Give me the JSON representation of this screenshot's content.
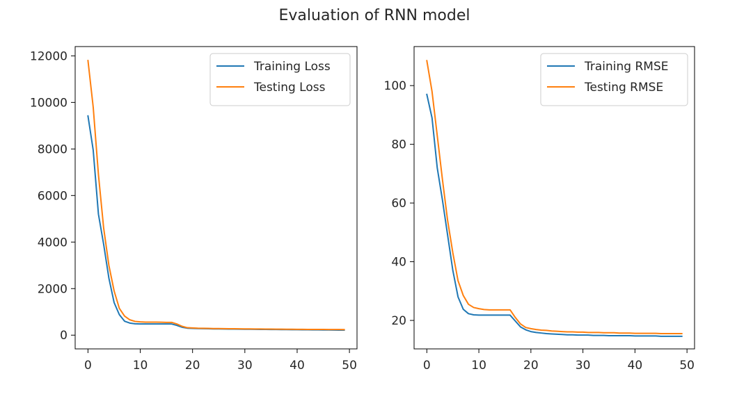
{
  "figure": {
    "suptitle": "Evaluation of RNN model"
  },
  "colors": {
    "training": "#1f77b4",
    "testing": "#ff7f0e",
    "axes": "#000000",
    "text": "#262626"
  },
  "chart_data": [
    {
      "type": "line",
      "title": "",
      "xlabel": "",
      "ylabel": "",
      "xlim": [
        -2.45,
        51.45
      ],
      "ylim": [
        -590,
        12400
      ],
      "xticks": [
        0,
        10,
        20,
        30,
        40,
        50
      ],
      "yticks": [
        0,
        2000,
        4000,
        6000,
        8000,
        10000,
        12000
      ],
      "legend": "top-right",
      "grid": false,
      "x": [
        0,
        1,
        2,
        3,
        4,
        5,
        6,
        7,
        8,
        9,
        10,
        11,
        12,
        13,
        14,
        15,
        16,
        17,
        18,
        19,
        20,
        21,
        22,
        23,
        24,
        25,
        26,
        27,
        28,
        29,
        30,
        31,
        32,
        33,
        34,
        35,
        36,
        37,
        38,
        39,
        40,
        41,
        42,
        43,
        44,
        45,
        46,
        47,
        48,
        49
      ],
      "series": [
        {
          "name": "Training Loss",
          "color_key": "training",
          "values": [
            9420,
            7950,
            5200,
            3900,
            2450,
            1400,
            880,
            600,
            520,
            490,
            480,
            480,
            480,
            480,
            480,
            480,
            480,
            420,
            340,
            300,
            290,
            285,
            280,
            275,
            270,
            268,
            265,
            262,
            260,
            258,
            255,
            252,
            250,
            248,
            246,
            244,
            242,
            240,
            238,
            236,
            234,
            232,
            230,
            228,
            226,
            224,
            222,
            220,
            218,
            215
          ]
        },
        {
          "name": "Testing Loss",
          "color_key": "testing",
          "values": [
            11800,
            9800,
            6900,
            4600,
            3000,
            1900,
            1150,
            820,
            660,
            590,
            570,
            560,
            560,
            560,
            555,
            550,
            550,
            480,
            380,
            320,
            310,
            300,
            295,
            290,
            285,
            283,
            280,
            277,
            275,
            272,
            270,
            268,
            266,
            264,
            262,
            260,
            258,
            256,
            254,
            252,
            250,
            249,
            248,
            247,
            246,
            245,
            244,
            243,
            242,
            240
          ]
        }
      ]
    },
    {
      "type": "line",
      "title": "",
      "xlabel": "",
      "ylabel": "",
      "xlim": [
        -2.45,
        51.45
      ],
      "ylim": [
        10.3,
        113.3
      ],
      "xticks": [
        0,
        10,
        20,
        30,
        40,
        50
      ],
      "yticks": [
        20,
        40,
        60,
        80,
        100
      ],
      "legend": "top-right",
      "grid": false,
      "x": [
        0,
        1,
        2,
        3,
        4,
        5,
        6,
        7,
        8,
        9,
        10,
        11,
        12,
        13,
        14,
        15,
        16,
        17,
        18,
        19,
        20,
        21,
        22,
        23,
        24,
        25,
        26,
        27,
        28,
        29,
        30,
        31,
        32,
        33,
        34,
        35,
        36,
        37,
        38,
        39,
        40,
        41,
        42,
        43,
        44,
        45,
        46,
        47,
        48,
        49
      ],
      "series": [
        {
          "name": "Training RMSE",
          "color_key": "training",
          "values": [
            97,
            89,
            72,
            61,
            49,
            37,
            28,
            23.8,
            22.3,
            21.9,
            21.8,
            21.8,
            21.8,
            21.8,
            21.8,
            21.8,
            21.8,
            19.8,
            17.8,
            16.8,
            16.2,
            15.9,
            15.7,
            15.5,
            15.4,
            15.3,
            15.2,
            15.1,
            15.1,
            15.0,
            15.0,
            15.0,
            14.9,
            14.9,
            14.9,
            14.8,
            14.8,
            14.8,
            14.8,
            14.8,
            14.7,
            14.7,
            14.7,
            14.7,
            14.7,
            14.6,
            14.6,
            14.6,
            14.6,
            14.6
          ]
        },
        {
          "name": "Testing RMSE",
          "color_key": "testing",
          "values": [
            108.5,
            98,
            83,
            68,
            54,
            43,
            33.5,
            28.5,
            25.5,
            24.4,
            24.0,
            23.7,
            23.6,
            23.6,
            23.6,
            23.6,
            23.6,
            21.0,
            18.8,
            17.6,
            17.2,
            16.9,
            16.7,
            16.6,
            16.4,
            16.3,
            16.2,
            16.1,
            16.1,
            16.0,
            16.0,
            15.9,
            15.9,
            15.9,
            15.8,
            15.8,
            15.8,
            15.7,
            15.7,
            15.7,
            15.6,
            15.6,
            15.6,
            15.6,
            15.6,
            15.5,
            15.5,
            15.5,
            15.5,
            15.5
          ]
        }
      ]
    }
  ]
}
